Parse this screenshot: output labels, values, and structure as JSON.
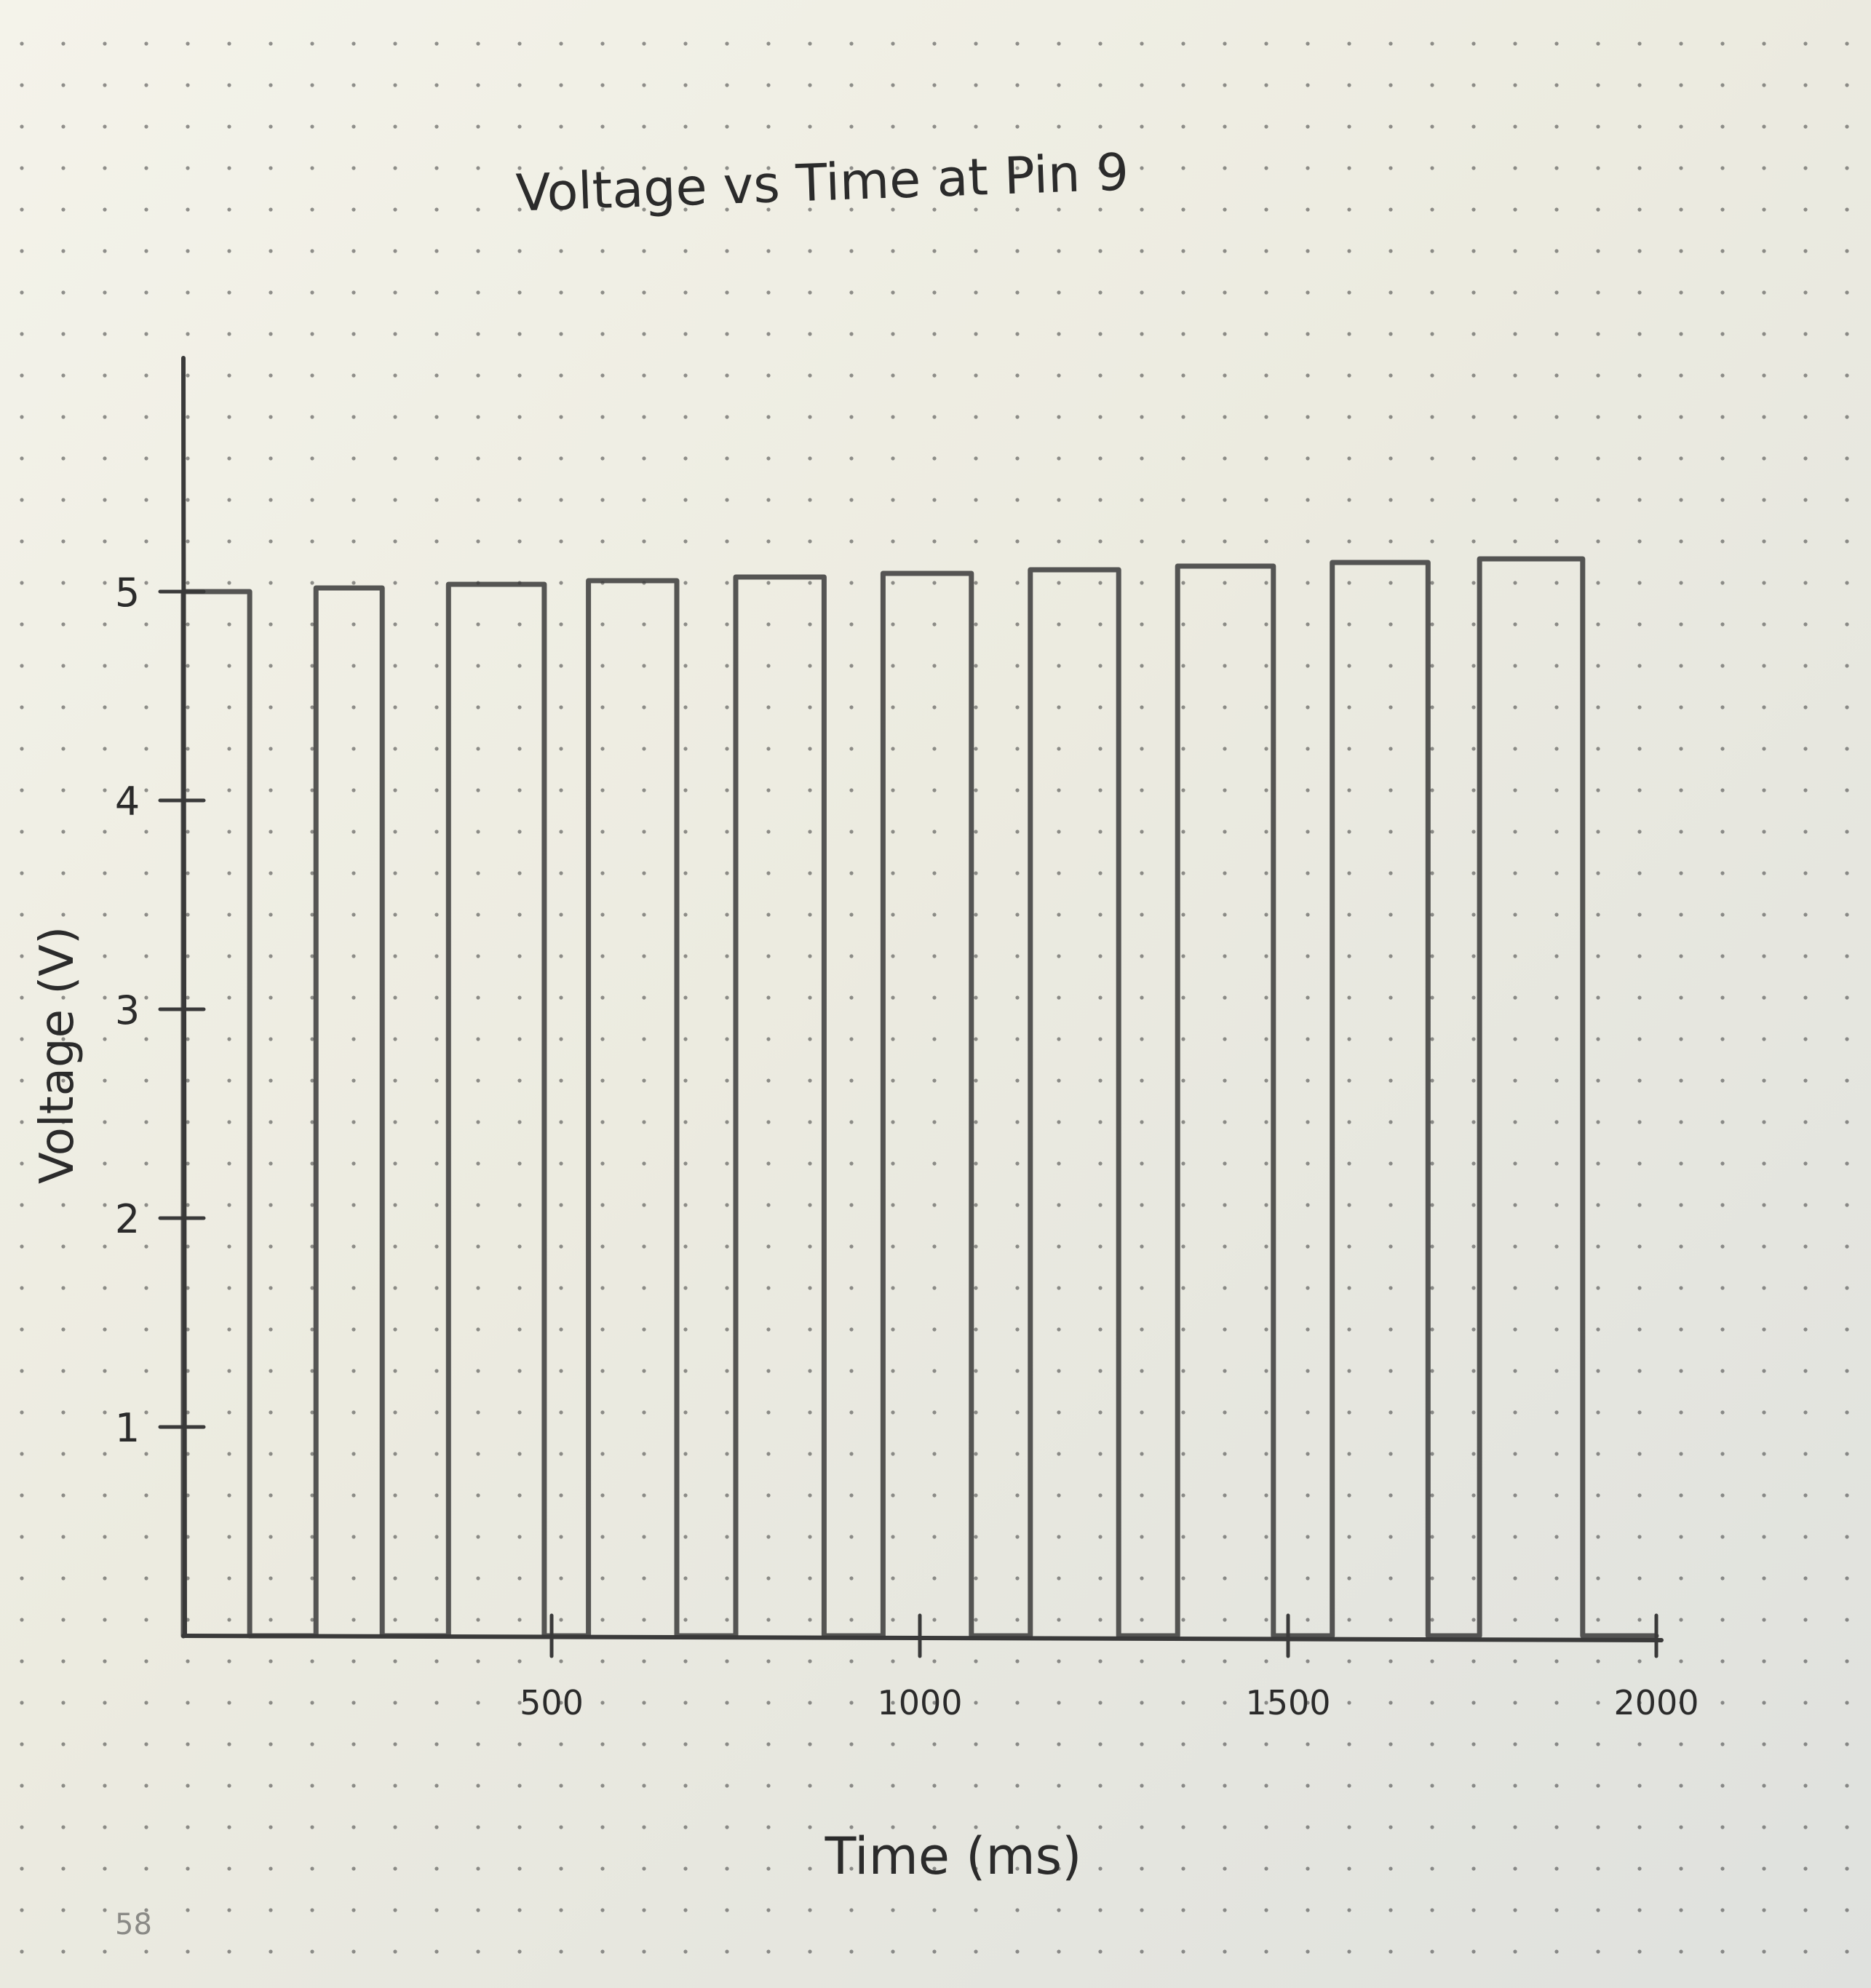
{
  "chart_data": {
    "type": "line",
    "style": "hand-drawn pencil square wave on dotted notebook paper",
    "title": "Voltage vs Time at Pin 9",
    "xlabel": "Time (ms)",
    "ylabel": "Voltage (V)",
    "x_ticks": [
      "500",
      "1000",
      "1500",
      "2000"
    ],
    "y_ticks": [
      "1",
      "2",
      "3",
      "4",
      "5"
    ],
    "xlim": [
      0,
      2000
    ],
    "ylim": [
      0,
      5.5
    ],
    "series": [
      {
        "x": [
          0,
          0,
          90,
          90,
          180,
          180,
          270,
          270,
          360,
          360,
          490,
          490,
          550,
          550,
          670,
          670,
          750,
          750,
          870,
          870,
          950,
          950,
          1070,
          1070,
          1150,
          1150,
          1270,
          1270,
          1350,
          1350,
          1480,
          1480,
          1560,
          1560,
          1690,
          1690,
          1760,
          1760,
          1900,
          1900,
          2000
        ],
        "y": [
          0,
          5,
          5,
          0,
          0,
          5,
          5,
          0,
          0,
          5,
          5,
          0,
          0,
          5,
          5,
          0,
          0,
          5,
          5,
          0,
          0,
          5,
          5,
          0,
          0,
          5,
          5,
          0,
          0,
          5,
          5,
          0,
          0,
          5,
          5,
          0,
          0,
          5,
          5,
          0,
          0
        ]
      }
    ],
    "line_color": "#3a3a3a",
    "grid": false
  },
  "page": {
    "page_number": "58",
    "paper_color": "#efeee4",
    "dot_color": "#3c3c3c"
  }
}
